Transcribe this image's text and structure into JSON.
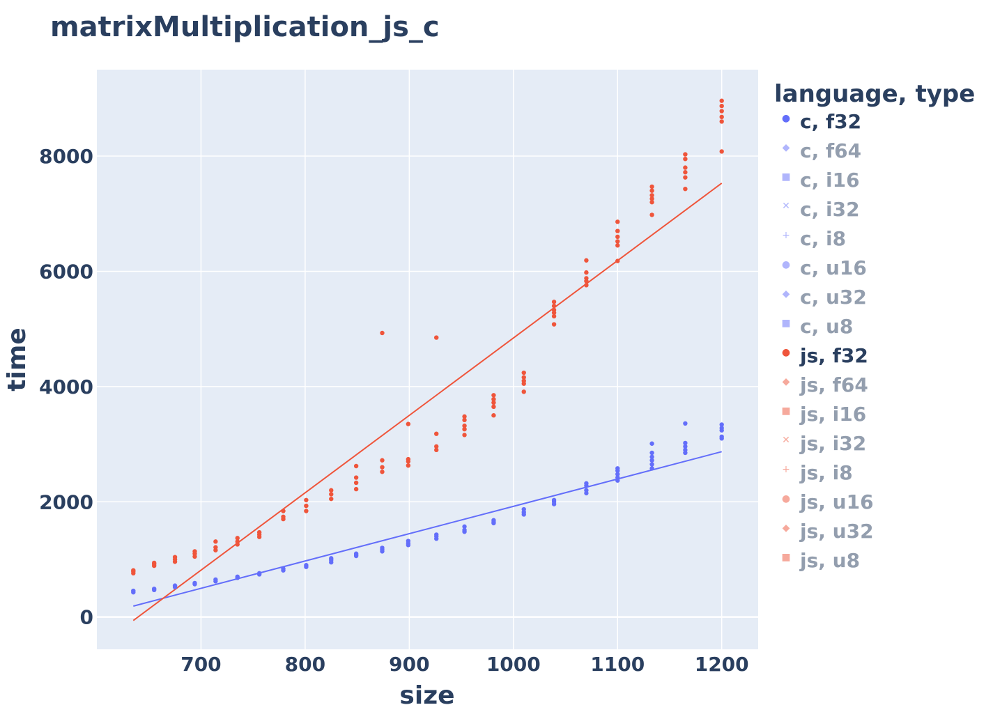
{
  "chart_data": {
    "type": "scatter",
    "title": "matrixMultiplication_js_c",
    "xlabel": "size",
    "ylabel": "time",
    "xlim": [
      600,
      1235
    ],
    "ylim": [
      -560,
      9500
    ],
    "xticks": [
      700,
      800,
      900,
      1000,
      1100,
      1200
    ],
    "yticks": [
      0,
      2000,
      4000,
      6000,
      8000
    ],
    "grid": true,
    "legend_title": "language, type",
    "legend_placement": "right",
    "legend": [
      {
        "label": "c, f32",
        "symbol": "●",
        "active": true,
        "color": "#636efa"
      },
      {
        "label": "c, f64",
        "symbol": "◆",
        "active": false,
        "color": "#636efa"
      },
      {
        "label": "c, i16",
        "symbol": "■",
        "active": false,
        "color": "#636efa"
      },
      {
        "label": "c, i32",
        "symbol": "✕",
        "active": false,
        "color": "#636efa"
      },
      {
        "label": "c, i8",
        "symbol": "+",
        "active": false,
        "color": "#636efa"
      },
      {
        "label": "c, u16",
        "symbol": "●",
        "active": false,
        "color": "#636efa"
      },
      {
        "label": "c, u32",
        "symbol": "◆",
        "active": false,
        "color": "#636efa"
      },
      {
        "label": "c, u8",
        "symbol": "■",
        "active": false,
        "color": "#636efa"
      },
      {
        "label": "js, f32",
        "symbol": "●",
        "active": true,
        "color": "#ef553b"
      },
      {
        "label": "js, f64",
        "symbol": "◆",
        "active": false,
        "color": "#ef553b"
      },
      {
        "label": "js, i16",
        "symbol": "■",
        "active": false,
        "color": "#ef553b"
      },
      {
        "label": "js, i32",
        "symbol": "✕",
        "active": false,
        "color": "#ef553b"
      },
      {
        "label": "js, i8",
        "symbol": "+",
        "active": false,
        "color": "#ef553b"
      },
      {
        "label": "js, u16",
        "symbol": "●",
        "active": false,
        "color": "#ef553b"
      },
      {
        "label": "js, u32",
        "symbol": "◆",
        "active": false,
        "color": "#ef553b"
      },
      {
        "label": "js, u8",
        "symbol": "■",
        "active": false,
        "color": "#ef553b"
      }
    ],
    "series": [
      {
        "name": "c, f32",
        "color": "#636efa",
        "points": [
          [
            635,
            430
          ],
          [
            635,
            455
          ],
          [
            655,
            470
          ],
          [
            655,
            490
          ],
          [
            675,
            520
          ],
          [
            675,
            545
          ],
          [
            694,
            570
          ],
          [
            694,
            590
          ],
          [
            714,
            620
          ],
          [
            714,
            650
          ],
          [
            735,
            680
          ],
          [
            735,
            700
          ],
          [
            756,
            740
          ],
          [
            756,
            760
          ],
          [
            779,
            810
          ],
          [
            779,
            840
          ],
          [
            801,
            870
          ],
          [
            801,
            900
          ],
          [
            825,
            950
          ],
          [
            825,
            990
          ],
          [
            825,
            1020
          ],
          [
            849,
            1060
          ],
          [
            849,
            1080
          ],
          [
            849,
            1100
          ],
          [
            874,
            1140
          ],
          [
            874,
            1170
          ],
          [
            874,
            1200
          ],
          [
            899,
            1250
          ],
          [
            899,
            1280
          ],
          [
            899,
            1320
          ],
          [
            926,
            1360
          ],
          [
            926,
            1400
          ],
          [
            926,
            1430
          ],
          [
            953,
            1480
          ],
          [
            953,
            1510
          ],
          [
            953,
            1570
          ],
          [
            981,
            1630
          ],
          [
            981,
            1650
          ],
          [
            981,
            1680
          ],
          [
            1010,
            1780
          ],
          [
            1010,
            1820
          ],
          [
            1010,
            1870
          ],
          [
            1039,
            1960
          ],
          [
            1039,
            2000
          ],
          [
            1039,
            2030
          ],
          [
            1070,
            2150
          ],
          [
            1070,
            2200
          ],
          [
            1070,
            2280
          ],
          [
            1070,
            2320
          ],
          [
            1100,
            2370
          ],
          [
            1100,
            2420
          ],
          [
            1100,
            2480
          ],
          [
            1100,
            2540
          ],
          [
            1100,
            2580
          ],
          [
            1133,
            2580
          ],
          [
            1133,
            2650
          ],
          [
            1133,
            2720
          ],
          [
            1133,
            2780
          ],
          [
            1133,
            2850
          ],
          [
            1133,
            3010
          ],
          [
            1165,
            2850
          ],
          [
            1165,
            2900
          ],
          [
            1165,
            2960
          ],
          [
            1165,
            3020
          ],
          [
            1165,
            3360
          ],
          [
            1200,
            3100
          ],
          [
            1200,
            3130
          ],
          [
            1200,
            3240
          ],
          [
            1200,
            3280
          ],
          [
            1200,
            3340
          ]
        ],
        "trendline": [
          [
            635,
            190
          ],
          [
            1200,
            2870
          ]
        ]
      },
      {
        "name": "js, f32",
        "color": "#ef553b",
        "points": [
          [
            635,
            760
          ],
          [
            635,
            790
          ],
          [
            635,
            810
          ],
          [
            655,
            890
          ],
          [
            655,
            920
          ],
          [
            655,
            940
          ],
          [
            675,
            960
          ],
          [
            675,
            1000
          ],
          [
            675,
            1040
          ],
          [
            694,
            1050
          ],
          [
            694,
            1100
          ],
          [
            694,
            1140
          ],
          [
            714,
            1160
          ],
          [
            714,
            1210
          ],
          [
            714,
            1310
          ],
          [
            735,
            1260
          ],
          [
            735,
            1310
          ],
          [
            735,
            1370
          ],
          [
            756,
            1390
          ],
          [
            756,
            1430
          ],
          [
            756,
            1470
          ],
          [
            779,
            1700
          ],
          [
            779,
            1740
          ],
          [
            779,
            1840
          ],
          [
            801,
            1840
          ],
          [
            801,
            1930
          ],
          [
            801,
            2030
          ],
          [
            825,
            2050
          ],
          [
            825,
            2130
          ],
          [
            825,
            2200
          ],
          [
            849,
            2220
          ],
          [
            849,
            2330
          ],
          [
            849,
            2420
          ],
          [
            849,
            2620
          ],
          [
            874,
            2520
          ],
          [
            874,
            2600
          ],
          [
            874,
            2720
          ],
          [
            874,
            4930
          ],
          [
            899,
            2630
          ],
          [
            899,
            2700
          ],
          [
            899,
            2740
          ],
          [
            899,
            3350
          ],
          [
            926,
            2900
          ],
          [
            926,
            2960
          ],
          [
            926,
            3180
          ],
          [
            926,
            4850
          ],
          [
            953,
            3160
          ],
          [
            953,
            3260
          ],
          [
            953,
            3320
          ],
          [
            953,
            3420
          ],
          [
            953,
            3480
          ],
          [
            981,
            3500
          ],
          [
            981,
            3650
          ],
          [
            981,
            3720
          ],
          [
            981,
            3780
          ],
          [
            981,
            3850
          ],
          [
            1010,
            3910
          ],
          [
            1010,
            4050
          ],
          [
            1010,
            4100
          ],
          [
            1010,
            4160
          ],
          [
            1010,
            4240
          ],
          [
            1039,
            5080
          ],
          [
            1039,
            5220
          ],
          [
            1039,
            5280
          ],
          [
            1039,
            5330
          ],
          [
            1039,
            5400
          ],
          [
            1039,
            5470
          ],
          [
            1070,
            5760
          ],
          [
            1070,
            5830
          ],
          [
            1070,
            5880
          ],
          [
            1070,
            5980
          ],
          [
            1070,
            6190
          ],
          [
            1100,
            6180
          ],
          [
            1100,
            6450
          ],
          [
            1100,
            6520
          ],
          [
            1100,
            6600
          ],
          [
            1100,
            6700
          ],
          [
            1100,
            6860
          ],
          [
            1133,
            6980
          ],
          [
            1133,
            7200
          ],
          [
            1133,
            7260
          ],
          [
            1133,
            7320
          ],
          [
            1133,
            7400
          ],
          [
            1133,
            7470
          ],
          [
            1165,
            7430
          ],
          [
            1165,
            7630
          ],
          [
            1165,
            7720
          ],
          [
            1165,
            7800
          ],
          [
            1165,
            7950
          ],
          [
            1165,
            8030
          ],
          [
            1200,
            8080
          ],
          [
            1200,
            8600
          ],
          [
            1200,
            8680
          ],
          [
            1200,
            8780
          ],
          [
            1200,
            8870
          ],
          [
            1200,
            8960
          ]
        ],
        "trendline": [
          [
            635,
            -60
          ],
          [
            1200,
            7530
          ]
        ]
      }
    ]
  }
}
